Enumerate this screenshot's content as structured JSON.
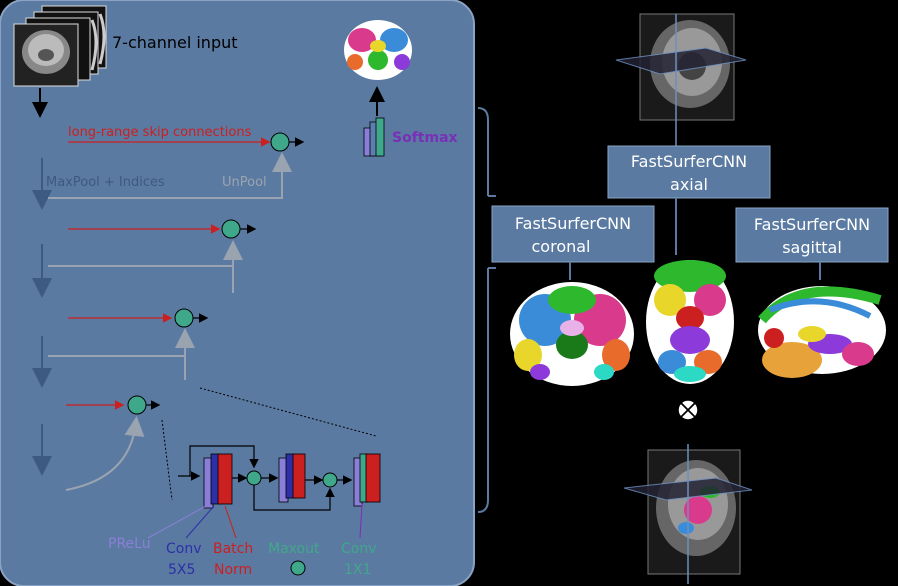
{
  "colors": {
    "panel": "#5b7aa1",
    "panel_stroke": "#8aa3c4",
    "node": "#40a88a",
    "skip_red": "#cc1f1f",
    "gray": "#9aa4b0",
    "blue_box": "#5a7fb0",
    "prelu": "#8a7fd8",
    "conv": "#2d2fa8",
    "bn": "#cc1f1f",
    "maxout": "#40a88a",
    "softmax": "#7a2fb8"
  },
  "left_panel": {
    "input_label": "7-channel input",
    "skip_label": "long-range skip connections",
    "maxpool_label": "MaxPool + Indices",
    "unpool_label": "UnPool",
    "softmax_label": "Softmax",
    "legend": {
      "prelu": "PReLu",
      "conv5": "Conv",
      "conv5_size": "5X5",
      "batch": "Batch",
      "norm": "Norm",
      "maxout": "Maxout",
      "conv1": "Conv",
      "conv1_size": "1X1"
    }
  },
  "right_panel": {
    "axial_line1": "FastSurferCNN",
    "axial_line2": "axial",
    "coronal_line1": "FastSurferCNN",
    "coronal_line2": "coronal",
    "sagittal_line1": "FastSurferCNN",
    "sagittal_line2": "sagittal",
    "combine_symbol": "⊗"
  }
}
